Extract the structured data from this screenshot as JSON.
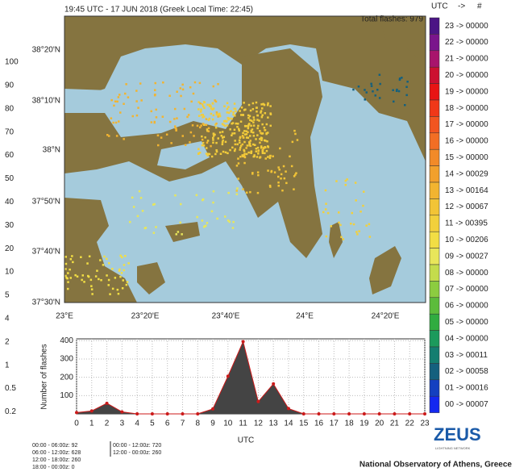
{
  "header": {
    "title": "19:45 UTC - 17  JUN 2018 (Greek Local Time: 22:45)",
    "total": "Total flashes: 979"
  },
  "map": {
    "lat_labels": [
      "38°20'N",
      "38°10'N",
      "38°N",
      "37°50'N",
      "37°40'N",
      "37°30'N"
    ],
    "lon_labels": [
      "23°E",
      "23°20'E",
      "23°40'E",
      "24°E",
      "24°20'E"
    ]
  },
  "left_scale": [
    100,
    90,
    80,
    70,
    60,
    50,
    40,
    30,
    20,
    10,
    5,
    4,
    2,
    1,
    0.5,
    0.2
  ],
  "legend": {
    "header": [
      "UTC",
      "->",
      "#"
    ],
    "entries": [
      {
        "label": "23 -> 00000",
        "color": "#4b1585"
      },
      {
        "label": "22 -> 00000",
        "color": "#7a158c"
      },
      {
        "label": "21 -> 00000",
        "color": "#a8146c"
      },
      {
        "label": "20 -> 00000",
        "color": "#cc1030"
      },
      {
        "label": "19 -> 00000",
        "color": "#e81414"
      },
      {
        "label": "18 -> 00000",
        "color": "#f03818"
      },
      {
        "label": "17 -> 00000",
        "color": "#f25520"
      },
      {
        "label": "16 -> 00000",
        "color": "#f26e24"
      },
      {
        "label": "15 -> 00000",
        "color": "#f28a28"
      },
      {
        "label": "14 -> 00029",
        "color": "#f2a02c"
      },
      {
        "label": "13 -> 00164",
        "color": "#f2b430"
      },
      {
        "label": "12 -> 00067",
        "color": "#f2c436"
      },
      {
        "label": "11 -> 00395",
        "color": "#f2d03c"
      },
      {
        "label": "10 -> 00206",
        "color": "#f2de44"
      },
      {
        "label": "09 -> 00027",
        "color": "#e8e65a"
      },
      {
        "label": "08 -> 00000",
        "color": "#c4dc4c"
      },
      {
        "label": "07 -> 00000",
        "color": "#8ccc40"
      },
      {
        "label": "06 -> 00000",
        "color": "#5cbc3c"
      },
      {
        "label": "05 -> 00000",
        "color": "#30ac40"
      },
      {
        "label": "04 -> 00000",
        "color": "#1c9a5c"
      },
      {
        "label": "03 -> 00011",
        "color": "#147e70"
      },
      {
        "label": "02 -> 00058",
        "color": "#14607e"
      },
      {
        "label": "01 -> 00016",
        "color": "#1440c0"
      },
      {
        "label": "00 -> 00007",
        "color": "#1428f0"
      }
    ]
  },
  "chart_data": {
    "type": "area",
    "y_label": "Number of flashes",
    "x_label": "UTC",
    "x": [
      0,
      1,
      2,
      3,
      4,
      5,
      6,
      7,
      8,
      9,
      10,
      11,
      12,
      13,
      14,
      15,
      16,
      17,
      18,
      19,
      20,
      21,
      22,
      23
    ],
    "values": [
      7,
      16,
      58,
      11,
      0,
      0,
      0,
      0,
      0,
      27,
      206,
      395,
      67,
      164,
      29,
      0,
      0,
      0,
      0,
      0,
      0,
      0,
      0,
      0
    ],
    "color": "#444444",
    "line_color": "#cc1a1a",
    "xlim": [
      0,
      23
    ],
    "xticks": [
      0,
      1,
      2,
      3,
      4,
      5,
      6,
      7,
      8,
      9,
      10,
      11,
      12,
      13,
      14,
      15,
      16,
      17,
      18,
      19,
      20,
      21,
      22,
      23
    ],
    "ylim": [
      0,
      410
    ],
    "yticks": [
      100,
      200,
      300,
      400
    ],
    "grid": true
  },
  "stats": [
    "00:00 - 06:00z: 92",
    "06:00 - 12:00z: 628",
    "12:00 - 18:00z: 260",
    "18:00 - 00:00z: 0",
    "00:00 - 12:00z: 720",
    "12:00 - 00:00z: 260"
  ],
  "logo": {
    "name": "ZEUS",
    "tagline": "LIGHTNING NETWORK"
  },
  "footer": "National Observatory of Athens, Greece"
}
